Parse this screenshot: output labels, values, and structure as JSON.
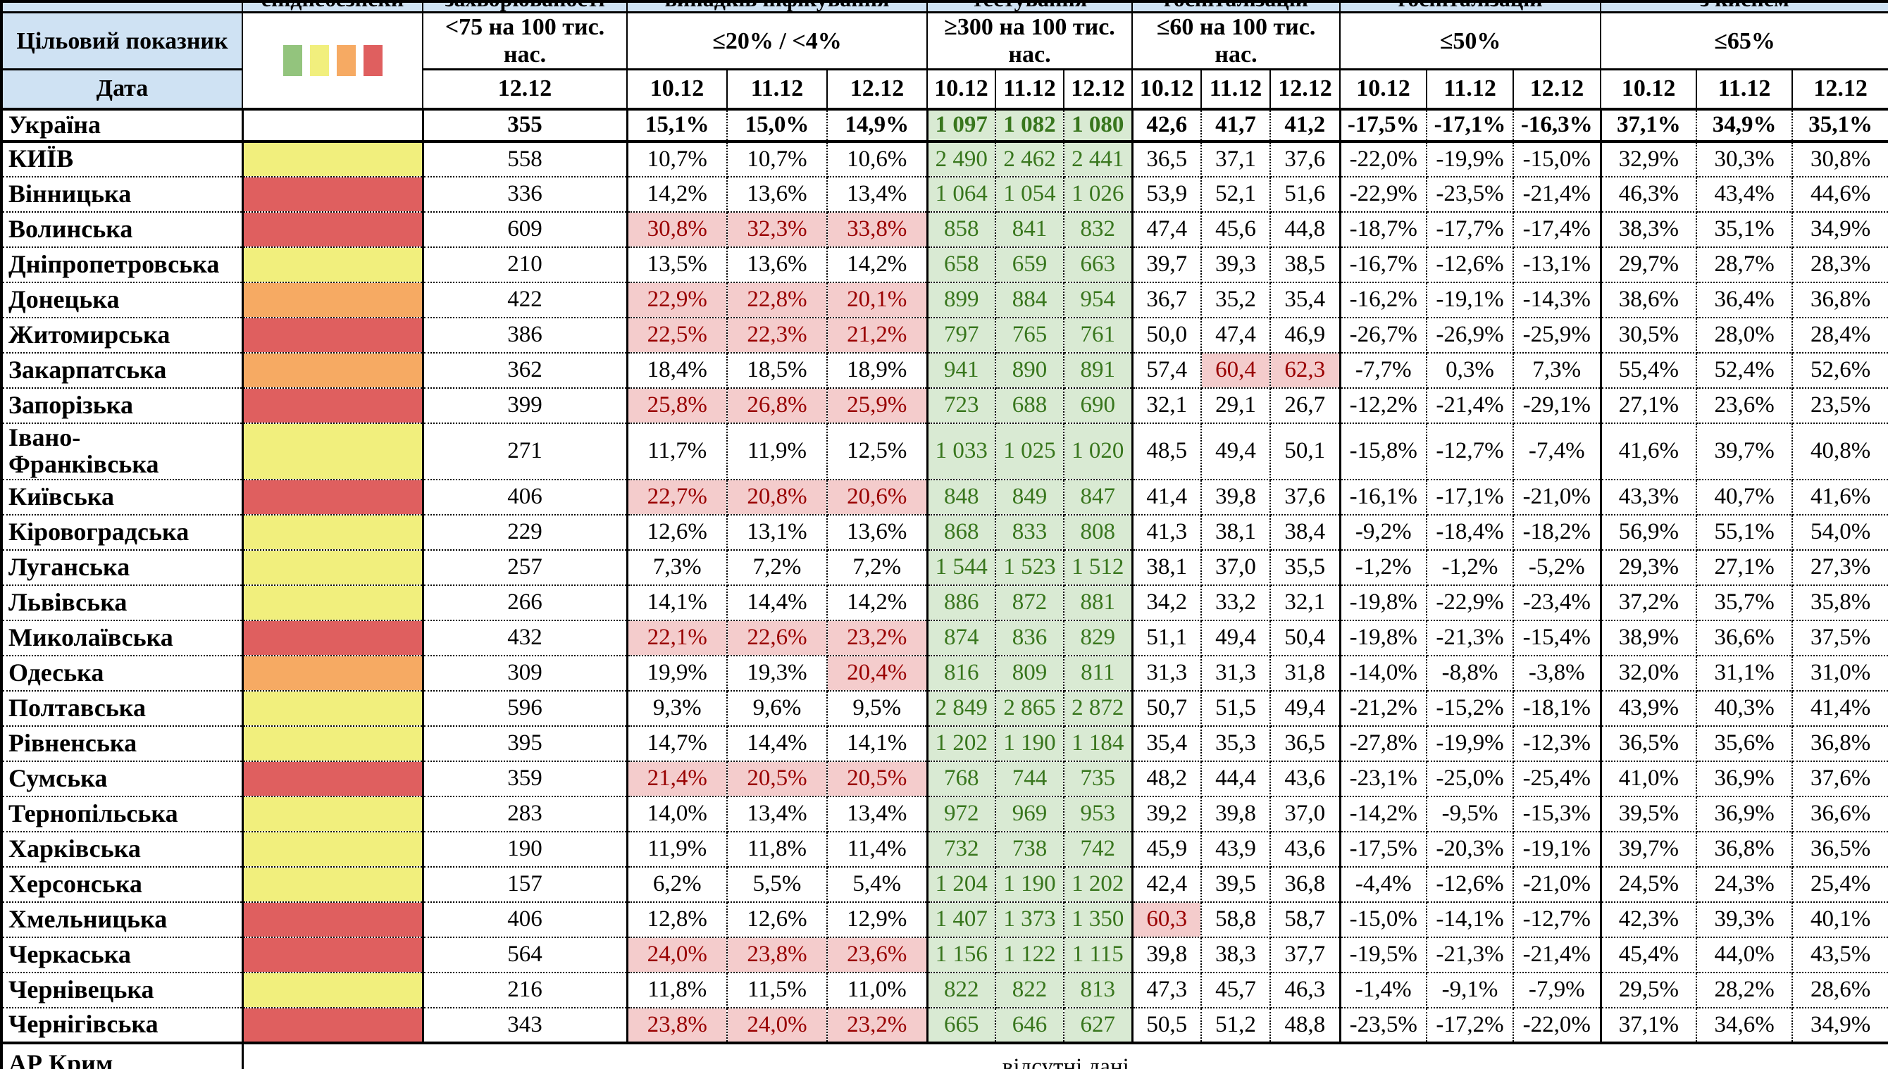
{
  "colors": {
    "header_bg": "#cfe2f3",
    "green_bg": "#d9ead3",
    "green_text": "#38761d",
    "red_bg": "#f4cccc",
    "red_text": "#990000",
    "level_yellow": "#f1ef7d",
    "level_orange": "#f6aa63",
    "level_red": "#df5f5f",
    "legend": [
      "#93c47d",
      "#f1ef7d",
      "#f6aa63",
      "#df5f5f"
    ]
  },
  "top_row": [
    "",
    "епіднебезпеки",
    "захворюваності",
    "випадків інфікування",
    "тестування",
    "госпіталізацій",
    "госпіталізацій",
    "з киснем"
  ],
  "header": {
    "target_label": "Цільовий показник",
    "date_label": "Дата",
    "thresholds": {
      "incidence": "<75 на 100 тис. нас.",
      "infection": "≤20% / <4%",
      "testing": "≥300 на 100 тис. нас.",
      "hospitalization": "≤60 на 100 тис. нас.",
      "hospitalization_dynamics": "≤50%",
      "oxygen_beds": "≤65%"
    },
    "incidence_date": "12.12",
    "dates": [
      "10.12",
      "11.12",
      "12.12"
    ]
  },
  "rows": [
    {
      "region": "Україна",
      "level": "",
      "bold": true,
      "incidence": "355",
      "infection": [
        "15,1%",
        "15,0%",
        "14,9%"
      ],
      "infection_red": [],
      "testing": [
        "1 097",
        "1 082",
        "1 080"
      ],
      "hosp": [
        "42,6",
        "41,7",
        "41,2"
      ],
      "hosp_red": [],
      "dynamics": [
        "-17,5%",
        "-17,1%",
        "-16,3%"
      ],
      "oxygen": [
        "37,1%",
        "34,9%",
        "35,1%"
      ]
    },
    {
      "region": "КИЇВ",
      "level": "yellow",
      "incidence": "558",
      "infection": [
        "10,7%",
        "10,7%",
        "10,6%"
      ],
      "infection_red": [],
      "testing": [
        "2 490",
        "2 462",
        "2 441"
      ],
      "hosp": [
        "36,5",
        "37,1",
        "37,6"
      ],
      "hosp_red": [],
      "dynamics": [
        "-22,0%",
        "-19,9%",
        "-15,0%"
      ],
      "oxygen": [
        "32,9%",
        "30,3%",
        "30,8%"
      ]
    },
    {
      "region": "Вінницька",
      "level": "red",
      "incidence": "336",
      "infection": [
        "14,2%",
        "13,6%",
        "13,4%"
      ],
      "infection_red": [],
      "testing": [
        "1 064",
        "1 054",
        "1 026"
      ],
      "hosp": [
        "53,9",
        "52,1",
        "51,6"
      ],
      "hosp_red": [],
      "dynamics": [
        "-22,9%",
        "-23,5%",
        "-21,4%"
      ],
      "oxygen": [
        "46,3%",
        "43,4%",
        "44,6%"
      ]
    },
    {
      "region": "Волинська",
      "level": "red",
      "incidence": "609",
      "infection": [
        "30,8%",
        "32,3%",
        "33,8%"
      ],
      "infection_red": [
        0,
        1,
        2
      ],
      "testing": [
        "858",
        "841",
        "832"
      ],
      "hosp": [
        "47,4",
        "45,6",
        "44,8"
      ],
      "hosp_red": [],
      "dynamics": [
        "-18,7%",
        "-17,7%",
        "-17,4%"
      ],
      "oxygen": [
        "38,3%",
        "35,1%",
        "34,9%"
      ]
    },
    {
      "region": "Дніпропетровська",
      "level": "yellow",
      "incidence": "210",
      "infection": [
        "13,5%",
        "13,6%",
        "14,2%"
      ],
      "infection_red": [],
      "testing": [
        "658",
        "659",
        "663"
      ],
      "hosp": [
        "39,7",
        "39,3",
        "38,5"
      ],
      "hosp_red": [],
      "dynamics": [
        "-16,7%",
        "-12,6%",
        "-13,1%"
      ],
      "oxygen": [
        "29,7%",
        "28,7%",
        "28,3%"
      ]
    },
    {
      "region": "Донецька",
      "level": "orange",
      "incidence": "422",
      "infection": [
        "22,9%",
        "22,8%",
        "20,1%"
      ],
      "infection_red": [
        0,
        1,
        2
      ],
      "testing": [
        "899",
        "884",
        "954"
      ],
      "hosp": [
        "36,7",
        "35,2",
        "35,4"
      ],
      "hosp_red": [],
      "dynamics": [
        "-16,2%",
        "-19,1%",
        "-14,3%"
      ],
      "oxygen": [
        "38,6%",
        "36,4%",
        "36,8%"
      ]
    },
    {
      "region": "Житомирська",
      "level": "red",
      "incidence": "386",
      "infection": [
        "22,5%",
        "22,3%",
        "21,2%"
      ],
      "infection_red": [
        0,
        1,
        2
      ],
      "testing": [
        "797",
        "765",
        "761"
      ],
      "hosp": [
        "50,0",
        "47,4",
        "46,9"
      ],
      "hosp_red": [],
      "dynamics": [
        "-26,7%",
        "-26,9%",
        "-25,9%"
      ],
      "oxygen": [
        "30,5%",
        "28,0%",
        "28,4%"
      ]
    },
    {
      "region": "Закарпатська",
      "level": "orange",
      "incidence": "362",
      "infection": [
        "18,4%",
        "18,5%",
        "18,9%"
      ],
      "infection_red": [],
      "testing": [
        "941",
        "890",
        "891"
      ],
      "hosp": [
        "57,4",
        "60,4",
        "62,3"
      ],
      "hosp_red": [
        1,
        2
      ],
      "dynamics": [
        "-7,7%",
        "0,3%",
        "7,3%"
      ],
      "oxygen": [
        "55,4%",
        "52,4%",
        "52,6%"
      ]
    },
    {
      "region": "Запорізька",
      "level": "red",
      "incidence": "399",
      "infection": [
        "25,8%",
        "26,8%",
        "25,9%"
      ],
      "infection_red": [
        0,
        1,
        2
      ],
      "testing": [
        "723",
        "688",
        "690"
      ],
      "hosp": [
        "32,1",
        "29,1",
        "26,7"
      ],
      "hosp_red": [],
      "dynamics": [
        "-12,2%",
        "-21,4%",
        "-29,1%"
      ],
      "oxygen": [
        "27,1%",
        "23,6%",
        "23,5%"
      ]
    },
    {
      "region": "Івано-\nФранківська",
      "level": "yellow",
      "tall": true,
      "incidence": "271",
      "infection": [
        "11,7%",
        "11,9%",
        "12,5%"
      ],
      "infection_red": [],
      "testing": [
        "1 033",
        "1 025",
        "1 020"
      ],
      "hosp": [
        "48,5",
        "49,4",
        "50,1"
      ],
      "hosp_red": [],
      "dynamics": [
        "-15,8%",
        "-12,7%",
        "-7,4%"
      ],
      "oxygen": [
        "41,6%",
        "39,7%",
        "40,8%"
      ]
    },
    {
      "region": "Київська",
      "level": "red",
      "incidence": "406",
      "infection": [
        "22,7%",
        "20,8%",
        "20,6%"
      ],
      "infection_red": [
        0,
        1,
        2
      ],
      "testing": [
        "848",
        "849",
        "847"
      ],
      "hosp": [
        "41,4",
        "39,8",
        "37,6"
      ],
      "hosp_red": [],
      "dynamics": [
        "-16,1%",
        "-17,1%",
        "-21,0%"
      ],
      "oxygen": [
        "43,3%",
        "40,7%",
        "41,6%"
      ]
    },
    {
      "region": "Кіровоградська",
      "level": "yellow",
      "incidence": "229",
      "infection": [
        "12,6%",
        "13,1%",
        "13,6%"
      ],
      "infection_red": [],
      "testing": [
        "868",
        "833",
        "808"
      ],
      "hosp": [
        "41,3",
        "38,1",
        "38,4"
      ],
      "hosp_red": [],
      "dynamics": [
        "-9,2%",
        "-18,4%",
        "-18,2%"
      ],
      "oxygen": [
        "56,9%",
        "55,1%",
        "54,0%"
      ]
    },
    {
      "region": "Луганська",
      "level": "yellow",
      "incidence": "257",
      "infection": [
        "7,3%",
        "7,2%",
        "7,2%"
      ],
      "infection_red": [],
      "testing": [
        "1 544",
        "1 523",
        "1 512"
      ],
      "hosp": [
        "38,1",
        "37,0",
        "35,5"
      ],
      "hosp_red": [],
      "dynamics": [
        "-1,2%",
        "-1,2%",
        "-5,2%"
      ],
      "oxygen": [
        "29,3%",
        "27,1%",
        "27,3%"
      ]
    },
    {
      "region": "Львівська",
      "level": "yellow",
      "incidence": "266",
      "infection": [
        "14,1%",
        "14,4%",
        "14,2%"
      ],
      "infection_red": [],
      "testing": [
        "886",
        "872",
        "881"
      ],
      "hosp": [
        "34,2",
        "33,2",
        "32,1"
      ],
      "hosp_red": [],
      "dynamics": [
        "-19,8%",
        "-22,9%",
        "-23,4%"
      ],
      "oxygen": [
        "37,2%",
        "35,7%",
        "35,8%"
      ]
    },
    {
      "region": "Миколаївська",
      "level": "red",
      "incidence": "432",
      "infection": [
        "22,1%",
        "22,6%",
        "23,2%"
      ],
      "infection_red": [
        0,
        1,
        2
      ],
      "testing": [
        "874",
        "836",
        "829"
      ],
      "hosp": [
        "51,1",
        "49,4",
        "50,4"
      ],
      "hosp_red": [],
      "dynamics": [
        "-19,8%",
        "-21,3%",
        "-15,4%"
      ],
      "oxygen": [
        "38,9%",
        "36,6%",
        "37,5%"
      ]
    },
    {
      "region": "Одеська",
      "level": "orange",
      "incidence": "309",
      "infection": [
        "19,9%",
        "19,3%",
        "20,4%"
      ],
      "infection_red": [
        2
      ],
      "testing": [
        "816",
        "809",
        "811"
      ],
      "hosp": [
        "31,3",
        "31,3",
        "31,8"
      ],
      "hosp_red": [],
      "dynamics": [
        "-14,0%",
        "-8,8%",
        "-3,8%"
      ],
      "oxygen": [
        "32,0%",
        "31,1%",
        "31,0%"
      ]
    },
    {
      "region": "Полтавська",
      "level": "yellow",
      "incidence": "596",
      "infection": [
        "9,3%",
        "9,6%",
        "9,5%"
      ],
      "infection_red": [],
      "testing": [
        "2 849",
        "2 865",
        "2 872"
      ],
      "hosp": [
        "50,7",
        "51,5",
        "49,4"
      ],
      "hosp_red": [],
      "dynamics": [
        "-21,2%",
        "-15,2%",
        "-18,1%"
      ],
      "oxygen": [
        "43,9%",
        "40,3%",
        "41,4%"
      ]
    },
    {
      "region": "Рівненська",
      "level": "yellow",
      "incidence": "395",
      "infection": [
        "14,7%",
        "14,4%",
        "14,1%"
      ],
      "infection_red": [],
      "testing": [
        "1 202",
        "1 190",
        "1 184"
      ],
      "hosp": [
        "35,4",
        "35,3",
        "36,5"
      ],
      "hosp_red": [],
      "dynamics": [
        "-27,8%",
        "-19,9%",
        "-12,3%"
      ],
      "oxygen": [
        "36,5%",
        "35,6%",
        "36,8%"
      ]
    },
    {
      "region": "Сумська",
      "level": "red",
      "incidence": "359",
      "infection": [
        "21,4%",
        "20,5%",
        "20,5%"
      ],
      "infection_red": [
        0,
        1,
        2
      ],
      "testing": [
        "768",
        "744",
        "735"
      ],
      "hosp": [
        "48,2",
        "44,4",
        "43,6"
      ],
      "hosp_red": [],
      "dynamics": [
        "-23,1%",
        "-25,0%",
        "-25,4%"
      ],
      "oxygen": [
        "41,0%",
        "36,9%",
        "37,6%"
      ]
    },
    {
      "region": "Тернопільська",
      "level": "yellow",
      "incidence": "283",
      "infection": [
        "14,0%",
        "13,4%",
        "13,4%"
      ],
      "infection_red": [],
      "testing": [
        "972",
        "969",
        "953"
      ],
      "hosp": [
        "39,2",
        "39,8",
        "37,0"
      ],
      "hosp_red": [],
      "dynamics": [
        "-14,2%",
        "-9,5%",
        "-15,3%"
      ],
      "oxygen": [
        "39,5%",
        "36,9%",
        "36,6%"
      ]
    },
    {
      "region": "Харківська",
      "level": "yellow",
      "incidence": "190",
      "infection": [
        "11,9%",
        "11,8%",
        "11,4%"
      ],
      "infection_red": [],
      "testing": [
        "732",
        "738",
        "742"
      ],
      "hosp": [
        "45,9",
        "43,9",
        "43,6"
      ],
      "hosp_red": [],
      "dynamics": [
        "-17,5%",
        "-20,3%",
        "-19,1%"
      ],
      "oxygen": [
        "39,7%",
        "36,8%",
        "36,5%"
      ]
    },
    {
      "region": "Херсонська",
      "level": "yellow",
      "incidence": "157",
      "infection": [
        "6,2%",
        "5,5%",
        "5,4%"
      ],
      "infection_red": [],
      "testing": [
        "1 204",
        "1 190",
        "1 202"
      ],
      "hosp": [
        "42,4",
        "39,5",
        "36,8"
      ],
      "hosp_red": [],
      "dynamics": [
        "-4,4%",
        "-12,6%",
        "-21,0%"
      ],
      "oxygen": [
        "24,5%",
        "24,3%",
        "25,4%"
      ]
    },
    {
      "region": "Хмельницька",
      "level": "red",
      "incidence": "406",
      "infection": [
        "12,8%",
        "12,6%",
        "12,9%"
      ],
      "infection_red": [],
      "testing": [
        "1 407",
        "1 373",
        "1 350"
      ],
      "hosp": [
        "60,3",
        "58,8",
        "58,7"
      ],
      "hosp_red": [
        0
      ],
      "dynamics": [
        "-15,0%",
        "-14,1%",
        "-12,7%"
      ],
      "oxygen": [
        "42,3%",
        "39,3%",
        "40,1%"
      ]
    },
    {
      "region": "Черкаська",
      "level": "red",
      "incidence": "564",
      "infection": [
        "24,0%",
        "23,8%",
        "23,6%"
      ],
      "infection_red": [
        0,
        1,
        2
      ],
      "testing": [
        "1 156",
        "1 122",
        "1 115"
      ],
      "hosp": [
        "39,8",
        "38,3",
        "37,7"
      ],
      "hosp_red": [],
      "dynamics": [
        "-19,5%",
        "-21,3%",
        "-21,4%"
      ],
      "oxygen": [
        "45,4%",
        "44,0%",
        "43,5%"
      ]
    },
    {
      "region": "Чернівецька",
      "level": "yellow",
      "incidence": "216",
      "infection": [
        "11,8%",
        "11,5%",
        "11,0%"
      ],
      "infection_red": [],
      "testing": [
        "822",
        "822",
        "813"
      ],
      "hosp": [
        "47,3",
        "45,7",
        "46,3"
      ],
      "hosp_red": [],
      "dynamics": [
        "-1,4%",
        "-9,1%",
        "-7,9%"
      ],
      "oxygen": [
        "29,5%",
        "28,2%",
        "28,6%"
      ]
    },
    {
      "region": "Чернігівська",
      "level": "red",
      "incidence": "343",
      "infection": [
        "23,8%",
        "24,0%",
        "23,2%"
      ],
      "infection_red": [
        0,
        1,
        2
      ],
      "testing": [
        "665",
        "646",
        "627"
      ],
      "hosp": [
        "50,5",
        "51,2",
        "48,8"
      ],
      "hosp_red": [],
      "dynamics": [
        "-23,5%",
        "-17,2%",
        "-22,0%"
      ],
      "oxygen": [
        "37,1%",
        "34,6%",
        "34,9%"
      ]
    }
  ],
  "no_data_row": {
    "region": "АР Крим",
    "text": "відсутні дані"
  }
}
